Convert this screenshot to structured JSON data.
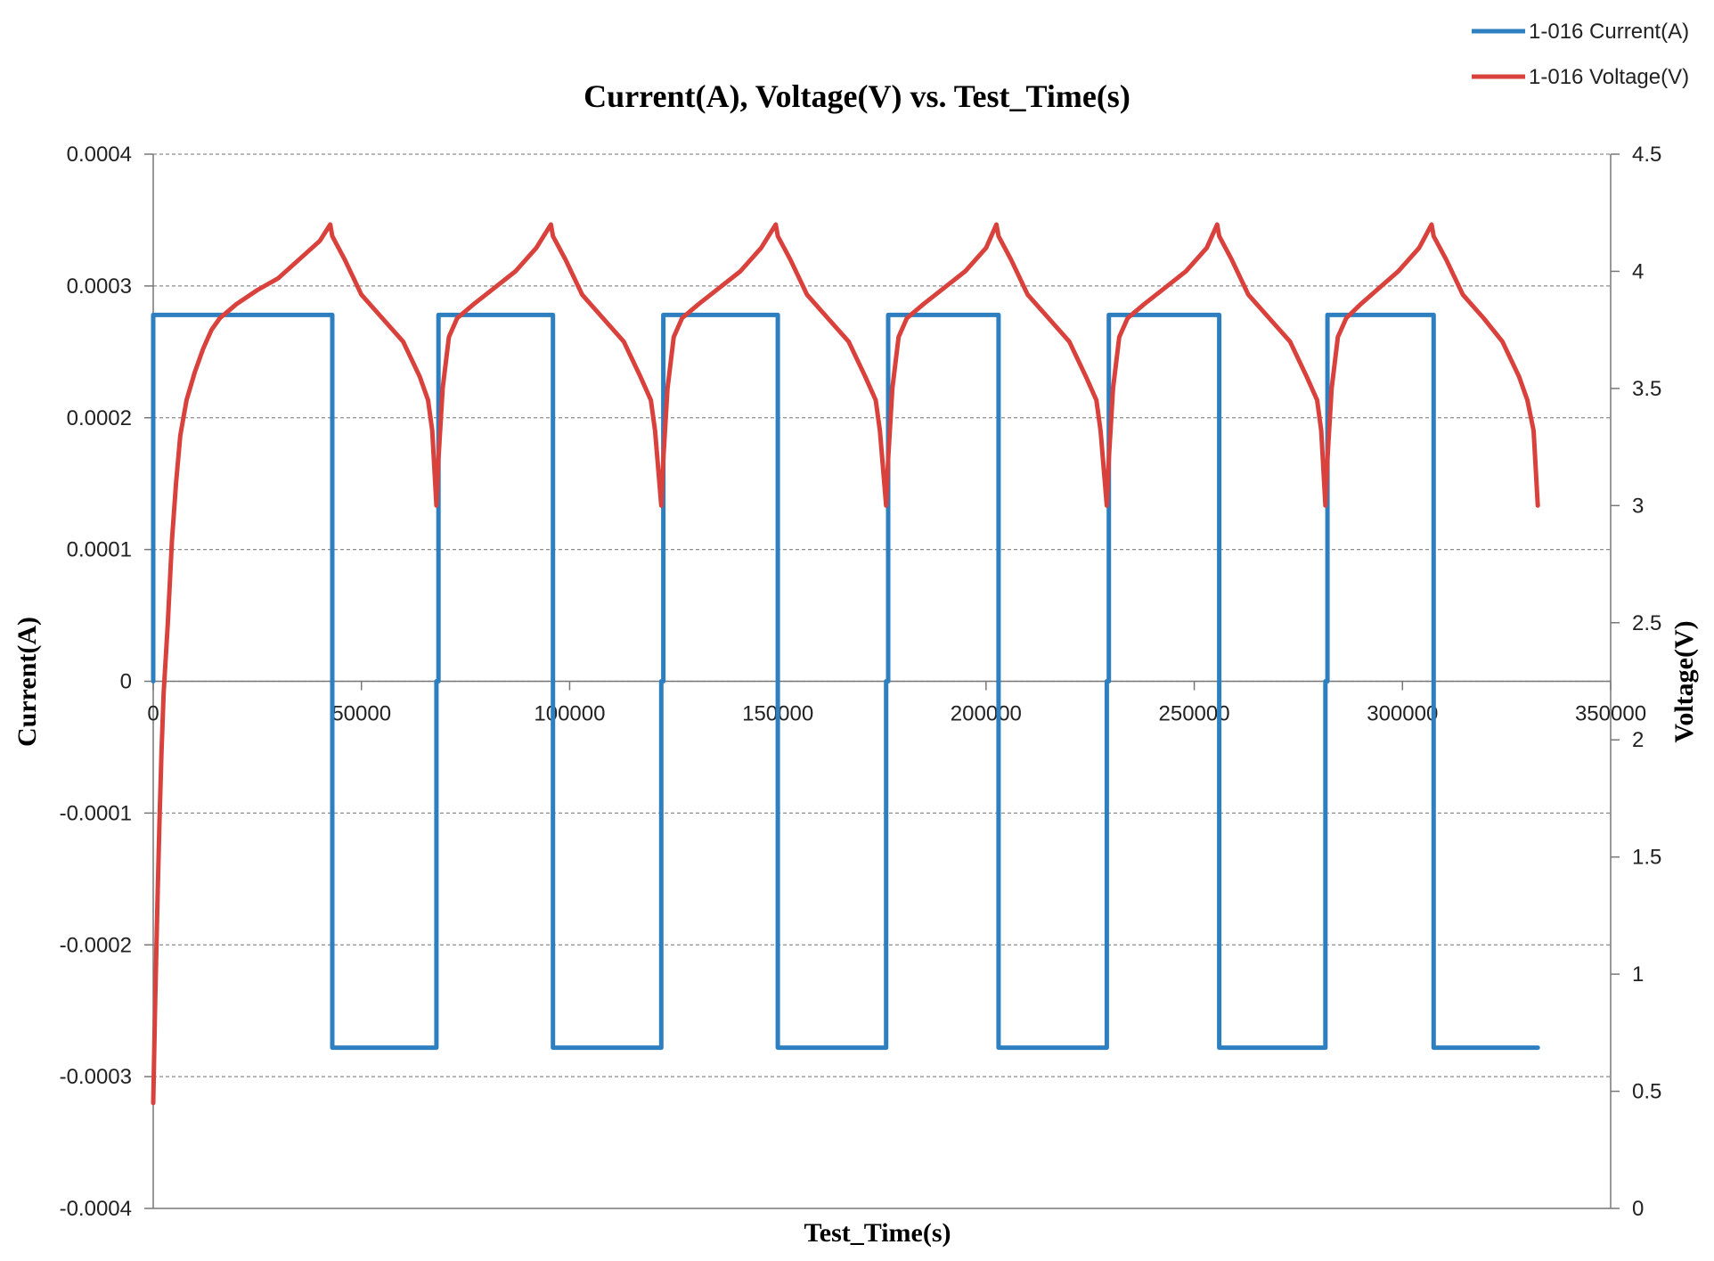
{
  "chart_data": {
    "type": "line",
    "title": "Current(A), Voltage(V) vs. Test_Time(s)",
    "xlabel": "Test_Time(s)",
    "ylabel": "Current(A)",
    "y2label": "Voltage(V)",
    "xlim": [
      0,
      350000
    ],
    "ylim": [
      -0.0004,
      0.0004
    ],
    "y2lim": [
      0,
      4.5
    ],
    "x_ticks": [
      "0",
      "50000",
      "100000",
      "150000",
      "200000",
      "250000",
      "300000",
      "350000"
    ],
    "y_ticks": [
      "-0.0004",
      "-0.0003",
      "-0.0002",
      "-0.0001",
      "0",
      "0.0001",
      "0.0002",
      "0.0003",
      "0.0004"
    ],
    "y2_ticks": [
      "0",
      "0.5",
      "1",
      "1.5",
      "2",
      "2.5",
      "3",
      "3.5",
      "4",
      "4.5"
    ],
    "grid": "horizontal-dashed",
    "legend_position": "top-right",
    "series": [
      {
        "name": "1-016 Current(A)",
        "axis": "left",
        "color": "#2E7FC0",
        "points": [
          [
            0,
            0
          ],
          [
            0,
            0.000278
          ],
          [
            43000,
            0.000278
          ],
          [
            43000,
            -0.000278
          ],
          [
            68000,
            -0.000278
          ],
          [
            68000,
            0
          ],
          [
            68500,
            0
          ],
          [
            68500,
            0.000278
          ],
          [
            96000,
            0.000278
          ],
          [
            96000,
            -0.000278
          ],
          [
            122000,
            -0.000278
          ],
          [
            122000,
            0
          ],
          [
            122500,
            0
          ],
          [
            122500,
            0.000278
          ],
          [
            150000,
            0.000278
          ],
          [
            150000,
            -0.000278
          ],
          [
            176000,
            -0.000278
          ],
          [
            176000,
            0
          ],
          [
            176500,
            0
          ],
          [
            176500,
            0.000278
          ],
          [
            203000,
            0.000278
          ],
          [
            203000,
            -0.000278
          ],
          [
            229000,
            -0.000278
          ],
          [
            229000,
            0
          ],
          [
            229500,
            0
          ],
          [
            229500,
            0.000278
          ],
          [
            256000,
            0.000278
          ],
          [
            256000,
            -0.000278
          ],
          [
            281500,
            -0.000278
          ],
          [
            281500,
            0
          ],
          [
            282000,
            0
          ],
          [
            282000,
            0.000278
          ],
          [
            307500,
            0.000278
          ],
          [
            307500,
            -0.000278
          ],
          [
            332500,
            -0.000278
          ]
        ]
      },
      {
        "name": "1-016 Voltage(V)",
        "axis": "right",
        "color": "#D9413C",
        "points": [
          [
            0,
            0.45
          ],
          [
            500,
            0.9
          ],
          [
            1000,
            1.3
          ],
          [
            1500,
            1.65
          ],
          [
            2000,
            1.95
          ],
          [
            2500,
            2.2
          ],
          [
            3500,
            2.5
          ],
          [
            4500,
            2.85
          ],
          [
            5500,
            3.1
          ],
          [
            6500,
            3.3
          ],
          [
            8000,
            3.45
          ],
          [
            10000,
            3.57
          ],
          [
            12000,
            3.67
          ],
          [
            14000,
            3.75
          ],
          [
            16000,
            3.8
          ],
          [
            20000,
            3.86
          ],
          [
            25000,
            3.92
          ],
          [
            30000,
            3.97
          ],
          [
            35000,
            4.05
          ],
          [
            40000,
            4.13
          ],
          [
            42500,
            4.2
          ],
          [
            43000,
            4.15
          ],
          [
            46000,
            4.05
          ],
          [
            50000,
            3.9
          ],
          [
            55000,
            3.8
          ],
          [
            60000,
            3.7
          ],
          [
            64000,
            3.55
          ],
          [
            66000,
            3.45
          ],
          [
            67000,
            3.32
          ],
          [
            68000,
            3.0
          ],
          [
            68500,
            3.2
          ],
          [
            69500,
            3.5
          ],
          [
            71000,
            3.72
          ],
          [
            73000,
            3.8
          ],
          [
            77000,
            3.86
          ],
          [
            82000,
            3.93
          ],
          [
            87000,
            4.0
          ],
          [
            92000,
            4.1
          ],
          [
            95500,
            4.2
          ],
          [
            96000,
            4.15
          ],
          [
            99000,
            4.05
          ],
          [
            103000,
            3.9
          ],
          [
            108000,
            3.8
          ],
          [
            113000,
            3.7
          ],
          [
            117000,
            3.55
          ],
          [
            119500,
            3.45
          ],
          [
            120500,
            3.32
          ],
          [
            122000,
            3.0
          ],
          [
            122500,
            3.2
          ],
          [
            123500,
            3.5
          ],
          [
            125000,
            3.72
          ],
          [
            127000,
            3.8
          ],
          [
            131000,
            3.86
          ],
          [
            136000,
            3.93
          ],
          [
            141000,
            4.0
          ],
          [
            146000,
            4.1
          ],
          [
            149500,
            4.2
          ],
          [
            150000,
            4.15
          ],
          [
            153000,
            4.05
          ],
          [
            157000,
            3.9
          ],
          [
            162000,
            3.8
          ],
          [
            167000,
            3.7
          ],
          [
            171000,
            3.55
          ],
          [
            173500,
            3.45
          ],
          [
            174500,
            3.32
          ],
          [
            176000,
            3.0
          ],
          [
            176500,
            3.2
          ],
          [
            177500,
            3.5
          ],
          [
            179000,
            3.72
          ],
          [
            181000,
            3.8
          ],
          [
            185000,
            3.86
          ],
          [
            190000,
            3.93
          ],
          [
            195000,
            4.0
          ],
          [
            200000,
            4.1
          ],
          [
            202500,
            4.2
          ],
          [
            203000,
            4.15
          ],
          [
            206000,
            4.05
          ],
          [
            210000,
            3.9
          ],
          [
            215000,
            3.8
          ],
          [
            220000,
            3.7
          ],
          [
            224000,
            3.55
          ],
          [
            226500,
            3.45
          ],
          [
            227500,
            3.32
          ],
          [
            229000,
            3.0
          ],
          [
            229500,
            3.2
          ],
          [
            230500,
            3.5
          ],
          [
            232000,
            3.72
          ],
          [
            234000,
            3.8
          ],
          [
            238000,
            3.86
          ],
          [
            243000,
            3.93
          ],
          [
            248000,
            4.0
          ],
          [
            253000,
            4.1
          ],
          [
            255500,
            4.2
          ],
          [
            256000,
            4.15
          ],
          [
            259000,
            4.05
          ],
          [
            263000,
            3.9
          ],
          [
            268000,
            3.8
          ],
          [
            273000,
            3.7
          ],
          [
            277000,
            3.55
          ],
          [
            279500,
            3.45
          ],
          [
            280500,
            3.32
          ],
          [
            281500,
            3.0
          ],
          [
            282000,
            3.2
          ],
          [
            283000,
            3.5
          ],
          [
            284500,
            3.72
          ],
          [
            286500,
            3.8
          ],
          [
            290000,
            3.86
          ],
          [
            294500,
            3.93
          ],
          [
            299000,
            4.0
          ],
          [
            304000,
            4.1
          ],
          [
            307000,
            4.2
          ],
          [
            307500,
            4.15
          ],
          [
            310500,
            4.05
          ],
          [
            314500,
            3.9
          ],
          [
            319500,
            3.8
          ],
          [
            324000,
            3.7
          ],
          [
            328000,
            3.55
          ],
          [
            330000,
            3.45
          ],
          [
            331500,
            3.32
          ],
          [
            332500,
            3.0
          ]
        ]
      }
    ]
  }
}
